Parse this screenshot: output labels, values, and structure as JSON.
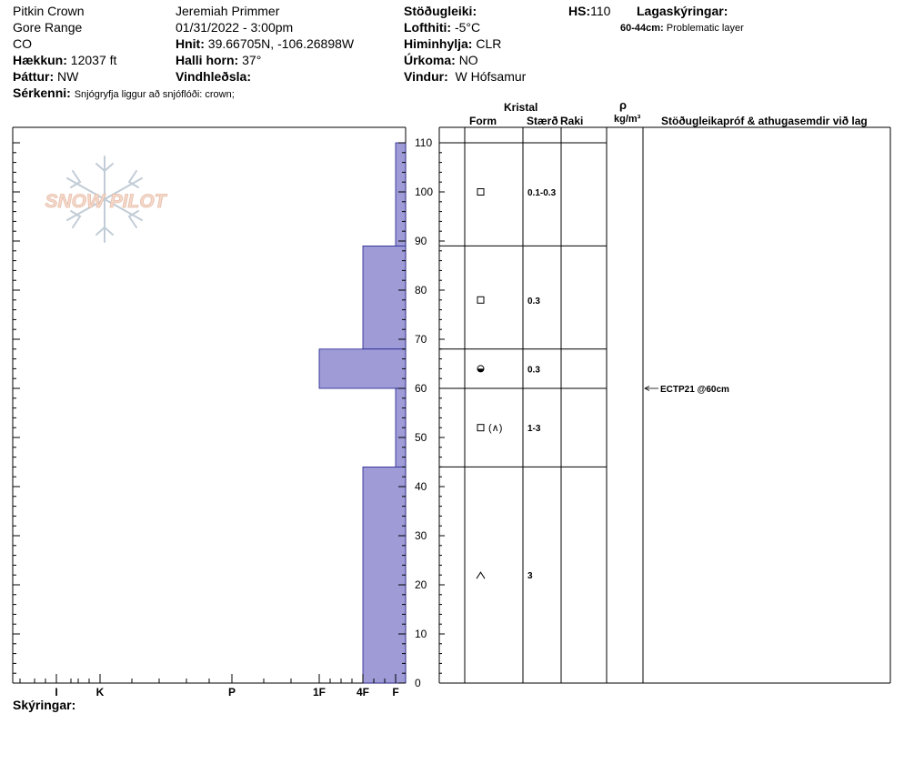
{
  "header": {
    "location": "Pitkin Crown",
    "range": "Gore Range",
    "state": "CO",
    "elevation_label": "Hækkun:",
    "elevation": "12037 ft",
    "aspect_label": "Þáttur:",
    "aspect": "NW",
    "features_label": "Sérkenni:",
    "features": "Snjógryfja liggur að snjóflóði: crown;",
    "observer": "Jeremiah Primmer",
    "datetime": "01/31/2022 - 3:00pm",
    "coords_label": "Hnit:",
    "coords": "39.66705N, -106.26898W",
    "slope_label": "Halli horn:",
    "slope": "37°",
    "wind_loading_label": "Vindhleðsla:",
    "wind_loading": "",
    "stability_label": "Stöðugleiki:",
    "stability": "",
    "air_temp_label": "Lofthiti:",
    "air_temp": "-5°C",
    "sky_label": "Himinhylja:",
    "sky": "CLR",
    "precip_label": "Úrkoma:",
    "precip": "NO",
    "wind_label": "Vindur:",
    "wind": "W Hófsamur",
    "hs_label": "HS:",
    "hs": "110",
    "layer_notes_label": "Lagaskýringar:",
    "layer_note_range": "60-44cm:",
    "layer_note_text": "Problematic layer",
    "notes_label": "Skýringar:"
  },
  "table": {
    "crystal_header": "Kristal",
    "form_header": "Form",
    "size_header": "Stærð",
    "moisture_header": "Raki",
    "density_symbol": "ρ",
    "density_unit": "kg/m³",
    "tests_header": "Stöðugleikapróf & athugasemdir við lag"
  },
  "chart_data": {
    "type": "bar",
    "title": "",
    "ylabel": "",
    "ylim": [
      0,
      110
    ],
    "y_ticks": [
      0,
      10,
      20,
      30,
      40,
      50,
      60,
      70,
      80,
      90,
      100,
      110
    ],
    "hardness_scale": [
      "I",
      "K",
      "P",
      "1F",
      "4F",
      "F"
    ],
    "bar_color": "#9e9bd7",
    "layers": [
      {
        "top": 110,
        "bottom": 89,
        "hardness": "F",
        "form": "square",
        "size": "0.1-0.3",
        "form_row": 100
      },
      {
        "top": 89,
        "bottom": 68,
        "hardness": "4F",
        "form": "square",
        "size": "0.3",
        "form_row": 78
      },
      {
        "top": 68,
        "bottom": 60,
        "hardness": "1F",
        "form": "melt-form",
        "size": "0.3",
        "form_row": 64
      },
      {
        "top": 60,
        "bottom": 44,
        "hardness": "F",
        "form": "square-depth-hoar",
        "form_text": "(∧)",
        "size": "1-3",
        "form_row": 52
      },
      {
        "top": 44,
        "bottom": 0,
        "hardness": "4F",
        "form": "depth-hoar",
        "size": "3",
        "form_row": 22
      }
    ],
    "tests": [
      {
        "depth": 60,
        "label": "ECTP21 @60cm"
      }
    ]
  },
  "logo_text": "SNOW PILOT"
}
